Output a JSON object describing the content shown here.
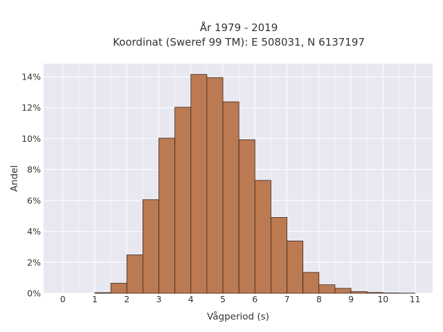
{
  "chart_data": {
    "type": "bar",
    "title_lines": [
      "År 1979 - 2019",
      "Koordinat (Sweref 99 TM): E 508031, N 6137197"
    ],
    "xlabel": "Vågperiod (s)",
    "ylabel": "Andel",
    "bin_width": 0.5,
    "bins": [
      {
        "x0": 1.0,
        "value": 0.0004
      },
      {
        "x0": 1.5,
        "value": 0.0065
      },
      {
        "x0": 2.0,
        "value": 0.0248
      },
      {
        "x0": 2.5,
        "value": 0.0605
      },
      {
        "x0": 3.0,
        "value": 0.1003
      },
      {
        "x0": 3.5,
        "value": 0.1203
      },
      {
        "x0": 4.0,
        "value": 0.1415
      },
      {
        "x0": 4.5,
        "value": 0.1395
      },
      {
        "x0": 5.0,
        "value": 0.1238
      },
      {
        "x0": 5.5,
        "value": 0.0993
      },
      {
        "x0": 6.0,
        "value": 0.073
      },
      {
        "x0": 6.5,
        "value": 0.049
      },
      {
        "x0": 7.0,
        "value": 0.0338
      },
      {
        "x0": 7.5,
        "value": 0.0135
      },
      {
        "x0": 8.0,
        "value": 0.0055
      },
      {
        "x0": 8.5,
        "value": 0.0032
      },
      {
        "x0": 9.0,
        "value": 0.0011
      },
      {
        "x0": 9.5,
        "value": 0.0005
      },
      {
        "x0": 10.0,
        "value": 0.0002
      },
      {
        "x0": 10.5,
        "value": 0.0001
      }
    ],
    "x_ticks": [
      0,
      1,
      2,
      3,
      4,
      5,
      6,
      7,
      8,
      9,
      10,
      11
    ],
    "y_ticks": [
      0,
      0.02,
      0.04,
      0.06,
      0.08,
      0.1,
      0.12,
      0.14
    ],
    "y_tick_labels": [
      "0%",
      "2%",
      "4%",
      "6%",
      "8%",
      "10%",
      "12%",
      "14%"
    ],
    "xlim": [
      -0.6,
      11.55
    ],
    "ylim": [
      0,
      0.1485
    ],
    "grid": true,
    "colors": {
      "bar_fill": "#bb7a52",
      "bar_stroke": "#3a2418",
      "plot_bg": "#e8e8f0",
      "grid": "#ffffff",
      "text": "#333333"
    }
  }
}
